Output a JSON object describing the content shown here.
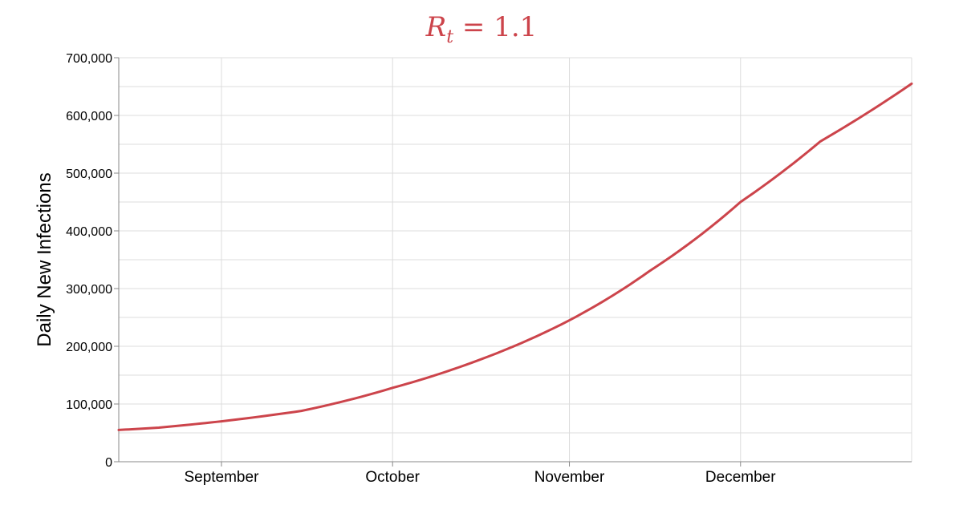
{
  "chart_data": {
    "type": "line",
    "title": "R_t = 1.1",
    "title_parts": {
      "base": "R",
      "subscript": "t",
      "rest": " = 1.1"
    },
    "title_color": "#cc444b",
    "xlabel": "",
    "ylabel": "Daily New Infections",
    "x_tick_labels": [
      "September",
      "October",
      "November",
      "December"
    ],
    "x_tick_dates": [
      "2020-09-01",
      "2020-10-01",
      "2020-11-01",
      "2020-12-01"
    ],
    "x_range": [
      "2020-08-14",
      "2020-12-31"
    ],
    "y_ticks": [
      0,
      100000,
      200000,
      300000,
      400000,
      500000,
      600000,
      700000
    ],
    "y_tick_labels": [
      "0",
      "100,000",
      "200,000",
      "300,000",
      "400,000",
      "500,000",
      "600,000",
      "700,000"
    ],
    "ylim": [
      0,
      700000
    ],
    "grid": true,
    "series": [
      {
        "color": "#cc444b",
        "x": [
          "2020-08-14",
          "2020-08-21",
          "2020-09-01",
          "2020-09-15",
          "2020-10-01",
          "2020-10-15",
          "2020-11-01",
          "2020-11-15",
          "2020-12-01",
          "2020-12-15",
          "2020-12-31"
        ],
        "y": [
          55000,
          59000,
          70000,
          88000,
          128000,
          172000,
          245000,
          330000,
          450000,
          555000,
          655000
        ]
      }
    ]
  }
}
